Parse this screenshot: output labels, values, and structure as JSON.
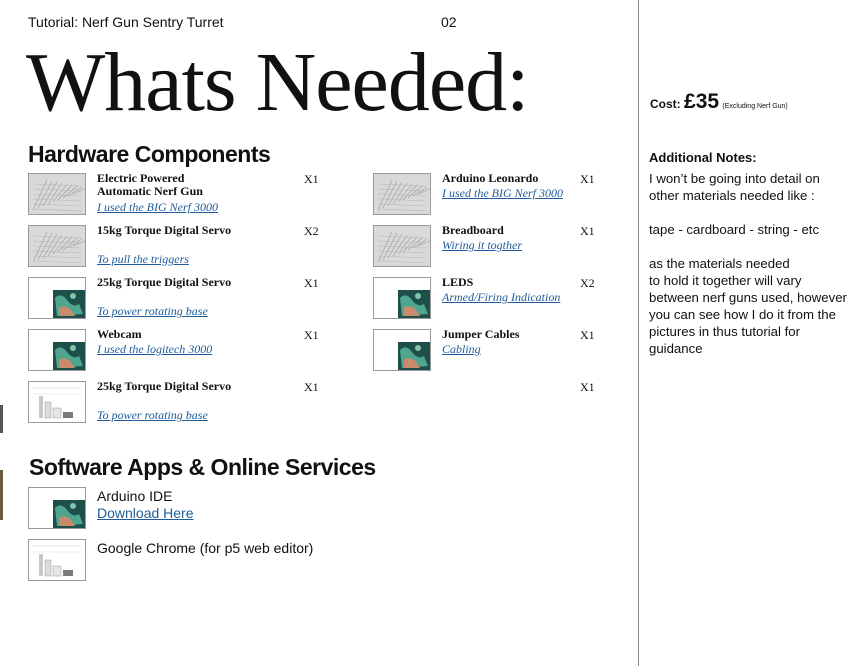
{
  "header": {
    "title": "Tutorial: Nerf Gun Sentry Turret",
    "page_number": "02"
  },
  "main_title": "Whats Needed:",
  "hardware": {
    "heading": "Hardware Components",
    "left_items": [
      {
        "name": "Electric Powered Automatic Nerf Gun",
        "note": "I used the BIG Nerf 3000",
        "qty": "X1",
        "thumb": "sketch"
      },
      {
        "name": "15kg Torque Digital Servo",
        "note": "To pull the triggers",
        "qty": "X2",
        "thumb": "sketch"
      },
      {
        "name": "25kg Torque Digital Servo",
        "note": "To power rotating base",
        "qty": "X1",
        "thumb": "map"
      },
      {
        "name": "Webcam",
        "note": "I used the logitech 3000",
        "qty": "X1",
        "thumb": "map"
      },
      {
        "name": "25kg Torque Digital Servo",
        "note": "To power rotating base",
        "qty": "X1",
        "thumb": "chart"
      }
    ],
    "right_items": [
      {
        "name": "Arduino Leonardo",
        "note": "I used the BIG Nerf 3000",
        "qty": "X1",
        "thumb": "sketch"
      },
      {
        "name": "Breadboard",
        "note": "Wiring it togther",
        "qty": "X1",
        "thumb": "sketch"
      },
      {
        "name": "LEDS",
        "note": "Armed/Firing Indication",
        "qty": "X2",
        "thumb": "map"
      },
      {
        "name": "Jumper Cables",
        "note": "Cabling",
        "qty": "X1",
        "thumb": "map"
      },
      {
        "name": "",
        "note": "",
        "qty": "X1",
        "thumb": "none"
      }
    ]
  },
  "software": {
    "heading": "Software Apps & Online Services",
    "items": [
      {
        "name": "Arduino IDE",
        "link": "Download Here",
        "thumb": "map"
      },
      {
        "name": "Google Chrome (for p5 web editor)",
        "link": "",
        "thumb": "chart"
      }
    ]
  },
  "sidebar": {
    "cost_label": "Cost:",
    "cost_amount": "£35",
    "cost_note": "(Excluding Nerf Gun)",
    "notes_heading": "Additional Notes:",
    "notes_body": "I won’t be going into detail on other materials needed like :\n\ntape - cardboard - string - etc\n\nas the materials needed\nto hold it together will vary between nerf guns used, however you can see how I do it from the pictures in thus tutorial for guidance"
  },
  "colors": {
    "link": "#1f5c99",
    "divider": "#8a8a8a"
  }
}
